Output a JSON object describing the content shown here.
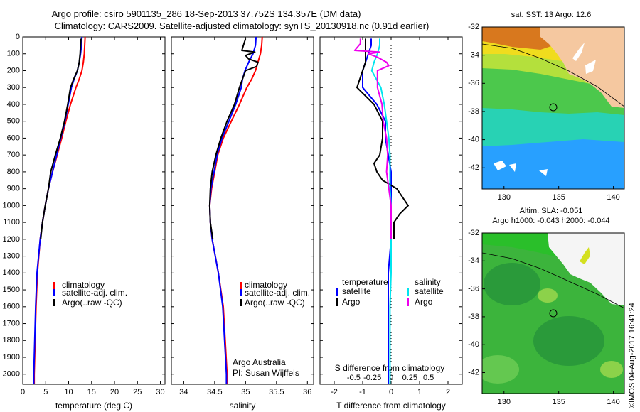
{
  "header": {
    "line1": "Argo profile: csiro 5901135_286 18-Sep-2013 37.752S 134.357E (DM data)",
    "line2": "Climatology: CARS2009. Satellite-adjusted climatology: synTS_20130918.nc (0.91d earlier)"
  },
  "colors": {
    "climatology": "#ff0000",
    "satellite": "#0000ff",
    "argo": "#000000",
    "sat_salinity": "#00e5ee",
    "argo_salinity": "#ee00ee"
  },
  "chart_data": [
    {
      "type": "line",
      "id": "temperature",
      "xlabel": "temperature (deg C)",
      "xlim": [
        0,
        31
      ],
      "xticks": [
        0,
        5,
        10,
        15,
        20,
        25,
        30
      ],
      "ylim": [
        0,
        2060
      ],
      "yticks": [
        0,
        100,
        200,
        300,
        400,
        500,
        600,
        700,
        800,
        900,
        1000,
        1100,
        1200,
        1300,
        1400,
        1500,
        1600,
        1700,
        1800,
        1900,
        2000
      ],
      "legend": [
        "climatology",
        "satellite-adj. clim.",
        "Argo(..raw -QC)"
      ],
      "series": [
        {
          "name": "climatology",
          "color": "#ff0000",
          "depth": [
            0,
            50,
            100,
            150,
            200,
            250,
            300,
            400,
            500,
            600,
            700,
            800,
            900,
            1000,
            1100,
            1200,
            1400,
            1600,
            1800,
            2000,
            2060
          ],
          "values": [
            13.6,
            13.5,
            13.4,
            13.2,
            12.9,
            12.3,
            11.6,
            10.4,
            9.4,
            8.5,
            7.5,
            6.5,
            5.6,
            4.9,
            4.3,
            3.8,
            3.2,
            2.9,
            2.7,
            2.5,
            2.5
          ]
        },
        {
          "name": "satellite-adj. clim.",
          "color": "#0000ff",
          "depth": [
            0,
            50,
            100,
            150,
            200,
            250,
            300,
            400,
            500,
            600,
            700,
            800,
            900,
            1000,
            1100,
            1200,
            1400,
            1600,
            1800,
            2000,
            2060
          ],
          "values": [
            12.9,
            12.8,
            12.6,
            12.3,
            11.9,
            11.2,
            10.6,
            9.9,
            9.2,
            8.3,
            7.4,
            6.5,
            5.6,
            4.9,
            4.3,
            3.8,
            3.1,
            2.8,
            2.6,
            2.4,
            2.4
          ]
        },
        {
          "name": "Argo(..raw -QC)",
          "color": "#000000",
          "depth": [
            10,
            50,
            100,
            150,
            200,
            250,
            300,
            400,
            500,
            600,
            700,
            800,
            900,
            1000,
            1100,
            1200
          ],
          "values": [
            12.7,
            12.6,
            12.5,
            12.3,
            11.9,
            11.1,
            10.4,
            9.8,
            9.1,
            8.2,
            7.1,
            6.1,
            5.6,
            4.9,
            4.3,
            3.9
          ]
        }
      ]
    },
    {
      "type": "line",
      "id": "salinity",
      "xlabel": "salinity",
      "xlim": [
        33.8,
        36.1
      ],
      "xticks": [
        34,
        34.5,
        35,
        35.5,
        36
      ],
      "xtick_labels": [
        "34",
        "34.5",
        "35",
        "35.5",
        "36"
      ],
      "ylim": [
        0,
        2060
      ],
      "legend": [
        "climatology",
        "satellite-adj. clim.",
        "Argo(..raw -QC)"
      ],
      "annotation": [
        "Argo Australia",
        "PI: Susan Wijffels"
      ],
      "series": [
        {
          "name": "climatology",
          "color": "#ff0000",
          "depth": [
            0,
            50,
            100,
            150,
            200,
            250,
            300,
            400,
            500,
            600,
            700,
            800,
            900,
            1000,
            1100,
            1200,
            1400,
            1600,
            1800,
            2000,
            2060
          ],
          "values": [
            35.27,
            35.26,
            35.24,
            35.2,
            35.16,
            35.1,
            35.02,
            34.9,
            34.77,
            34.64,
            34.55,
            34.5,
            34.45,
            34.42,
            34.43,
            34.46,
            34.56,
            34.64,
            34.67,
            34.7,
            34.7
          ]
        },
        {
          "name": "satellite-adj. clim.",
          "color": "#0000ff",
          "depth": [
            0,
            50,
            100,
            150,
            200,
            250,
            300,
            400,
            500,
            600,
            700,
            800,
            900,
            1000,
            1100,
            1200,
            1400,
            1600,
            1800,
            2000,
            2060
          ],
          "values": [
            35.17,
            35.16,
            35.12,
            35.05,
            34.99,
            34.95,
            34.93,
            34.84,
            34.73,
            34.62,
            34.54,
            34.49,
            34.44,
            34.42,
            34.43,
            34.46,
            34.56,
            34.63,
            34.66,
            34.69,
            34.69
          ]
        },
        {
          "name": "Argo(..raw -QC)",
          "color": "#000000",
          "depth": [
            10,
            80,
            90,
            110,
            130,
            150,
            175,
            200,
            250,
            300,
            400,
            500,
            600,
            700,
            800,
            900,
            1000,
            1100,
            1200
          ],
          "values": [
            35.0,
            34.94,
            35.15,
            35.0,
            35.05,
            35.2,
            35.18,
            35.0,
            34.95,
            34.9,
            34.82,
            34.7,
            34.6,
            34.52,
            34.46,
            34.43,
            34.42,
            34.43,
            34.47
          ]
        }
      ]
    },
    {
      "type": "line",
      "id": "difference",
      "xlabel": "T difference from climatology",
      "x2label": "S difference from climatology",
      "xlim": [
        -2.5,
        2.5
      ],
      "xticks": [
        -2,
        -1,
        0,
        1,
        2
      ],
      "x2ticks": [
        -0.5,
        -0.25,
        0,
        0.25,
        0.5
      ],
      "x2tick_labels": [
        "-0.5",
        "-0.25",
        "0",
        "0.25",
        "0.5"
      ],
      "ylim": [
        0,
        2060
      ],
      "legend_temperature_title": "temperature",
      "legend_salinity_title": "salinity",
      "legend_temperature": [
        "satellite",
        "Argo"
      ],
      "legend_salinity": [
        "satellite",
        "Argo"
      ],
      "series": [
        {
          "name": "temperature satellite",
          "color": "#0000ff",
          "depth": [
            10,
            50,
            100,
            150,
            200,
            300,
            400,
            500,
            600,
            700,
            800,
            900,
            1000,
            1100,
            1200,
            1400,
            1600,
            1800,
            2000,
            2060
          ],
          "values": [
            -0.7,
            -0.7,
            -0.8,
            -0.9,
            -1.0,
            -1.0,
            -0.5,
            -0.2,
            -0.2,
            -0.1,
            0,
            0,
            0,
            0,
            0,
            -0.1,
            -0.1,
            -0.1,
            -0.1,
            -0.1
          ]
        },
        {
          "name": "temperature Argo",
          "color": "#000000",
          "depth": [
            10,
            50,
            100,
            150,
            200,
            300,
            400,
            500,
            600,
            700,
            750,
            800,
            850,
            900,
            950,
            1000,
            1050,
            1100,
            1200
          ],
          "values": [
            -0.9,
            -0.9,
            -0.9,
            -0.9,
            -1.0,
            -1.2,
            -0.6,
            -0.3,
            -0.3,
            -0.4,
            -0.6,
            -0.5,
            -0.3,
            0.2,
            0.4,
            0.6,
            0.3,
            0.1,
            0.1
          ]
        },
        {
          "name": "salinity satellite",
          "color": "#00e5ee",
          "depth": [
            10,
            50,
            100,
            150,
            200,
            300,
            400,
            500,
            600,
            700,
            800,
            900,
            1000,
            1100,
            1200,
            1400,
            1600,
            1800,
            2000,
            2060
          ],
          "values": [
            -0.1,
            -0.1,
            -0.12,
            -0.15,
            -0.17,
            -0.09,
            -0.06,
            -0.04,
            -0.02,
            -0.01,
            -0.01,
            -0.01,
            0,
            0,
            0,
            0,
            -0.01,
            -0.01,
            -0.01,
            -0.01
          ]
        },
        {
          "name": "salinity Argo",
          "color": "#ee00ee",
          "depth": [
            10,
            40,
            80,
            90,
            100,
            120,
            150,
            170,
            200,
            300,
            400,
            500,
            600,
            700,
            800,
            900,
            1000,
            1100,
            1200
          ],
          "values": [
            -0.27,
            -0.27,
            -0.32,
            -0.1,
            -0.2,
            -0.12,
            -0.04,
            -0.02,
            -0.12,
            -0.12,
            -0.08,
            -0.07,
            -0.04,
            -0.03,
            -0.04,
            -0.02,
            0,
            0,
            0
          ]
        }
      ]
    },
    {
      "type": "heatmap",
      "id": "sst-map",
      "title": "sat. SST: 13 Argo: 12.6",
      "xlim": [
        128,
        141
      ],
      "ylim": [
        -43.5,
        -32
      ],
      "xticks": [
        130,
        135,
        140
      ],
      "yticks": [
        -32,
        -34,
        -36,
        -38,
        -40,
        -42
      ],
      "argo_position": {
        "lon": 134.357,
        "lat": -37.752
      }
    },
    {
      "type": "heatmap",
      "id": "sla-map",
      "title1": "Altim. SLA: -0.051",
      "title2": "Argo h1000: -0.043 h2000: -0.044",
      "xlim": [
        128,
        141
      ],
      "ylim": [
        -43.5,
        -32
      ],
      "xticks": [
        130,
        135,
        140
      ],
      "yticks": [
        -32,
        -34,
        -36,
        -38,
        -40,
        -42
      ],
      "argo_position": {
        "lon": 134.357,
        "lat": -37.752
      }
    }
  ],
  "footer": {
    "credit": "©IMOS 04-Aug-2017 16:41:24"
  }
}
